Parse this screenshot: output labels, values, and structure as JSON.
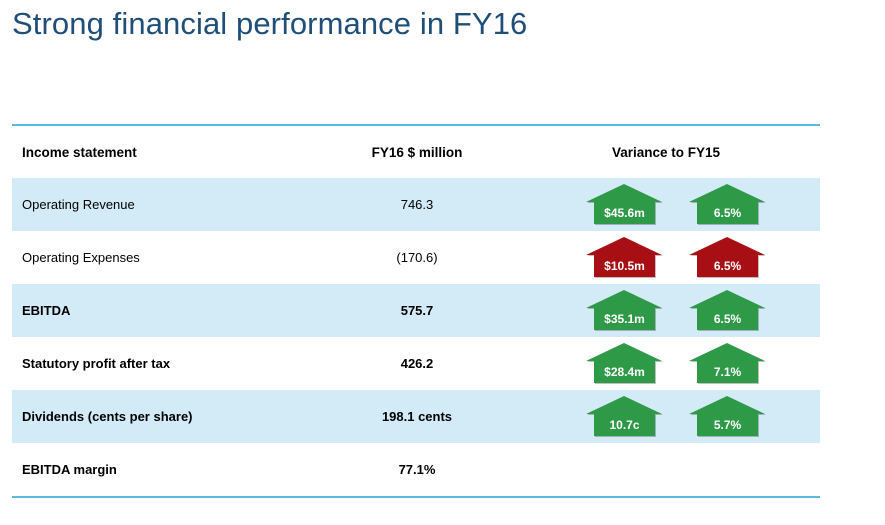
{
  "title": "Strong financial performance in FY16",
  "table": {
    "headers": [
      "Income statement",
      "FY16 $ million",
      "Variance to FY15"
    ],
    "rows": [
      {
        "label": "Operating Revenue",
        "value": "746.3",
        "shade": true,
        "bold": false,
        "variance": [
          {
            "text": "$45.6m",
            "dir": "up",
            "color": "#2e9a48"
          },
          {
            "text": "6.5%",
            "dir": "up",
            "color": "#2e9a48"
          }
        ]
      },
      {
        "label": "Operating Expenses",
        "value": "(170.6)",
        "shade": false,
        "bold": false,
        "variance": [
          {
            "text": "$10.5m",
            "dir": "up",
            "color": "#a80f14"
          },
          {
            "text": "6.5%",
            "dir": "up",
            "color": "#a80f14"
          }
        ]
      },
      {
        "label": "EBITDA",
        "value": "575.7",
        "shade": true,
        "bold": true,
        "variance": [
          {
            "text": "$35.1m",
            "dir": "up",
            "color": "#2e9a48"
          },
          {
            "text": "6.5%",
            "dir": "up",
            "color": "#2e9a48"
          }
        ]
      },
      {
        "label": "Statutory profit after tax",
        "value": "426.2",
        "shade": false,
        "bold": true,
        "variance": [
          {
            "text": "$28.4m",
            "dir": "up",
            "color": "#2e9a48"
          },
          {
            "text": "7.1%",
            "dir": "up",
            "color": "#2e9a48"
          }
        ]
      },
      {
        "label": "Dividends (cents per share)",
        "value": "198.1 cents",
        "shade": true,
        "bold": true,
        "variance": [
          {
            "text": "10.7c",
            "dir": "up",
            "color": "#2e9a48"
          },
          {
            "text": "5.7%",
            "dir": "up",
            "color": "#2e9a48"
          }
        ]
      },
      {
        "label": "EBITDA margin",
        "value": "77.1%",
        "shade": false,
        "bold": true,
        "variance": []
      }
    ]
  },
  "colors": {
    "title": "#1f4e79",
    "rule": "#5cb8dd",
    "shade": "#d3ebf7",
    "positive": "#2e9a48",
    "negative": "#a80f14"
  }
}
